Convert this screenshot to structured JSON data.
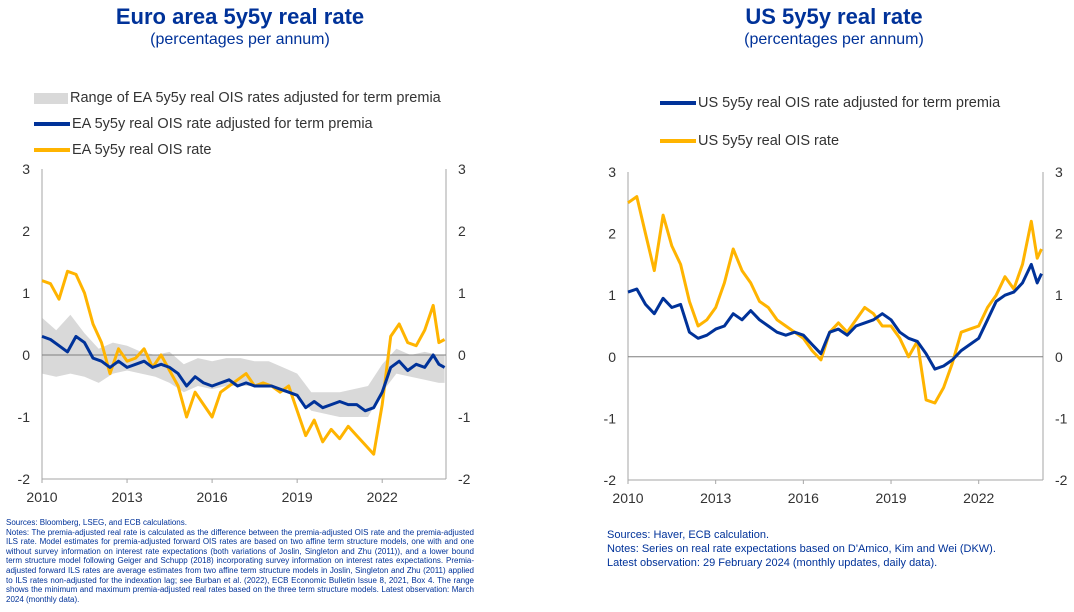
{
  "left": {
    "title": "Euro area 5y5y real rate",
    "subtitle": "(percentages per annum)",
    "legend": [
      {
        "label": "Range of EA 5y5y real OIS rates adjusted for term premia",
        "kind": "band",
        "color": "#d9d9d9"
      },
      {
        "label": "EA 5y5y real OIS rate adjusted for term premia",
        "kind": "line",
        "color": "#003299"
      },
      {
        "label": "EA 5y5y real OIS rate",
        "kind": "line",
        "color": "#ffb400"
      }
    ],
    "sources": "Sources: Bloomberg, LSEG, and ECB calculations.",
    "notes": "Notes: The premia-adjusted real rate is calculated as the difference between the premia-adjusted OIS rate and the premia-adjusted ILS rate. Model estimates for premia-adjusted forward OIS rates are based on two affine term structure models, one with and one without survey information on interest rate expectations (both variations of Joslin, Singleton and Zhu (2011)), and a lower bound term structure model following Geiger and Schupp (2018) incorporating survey information on interest rates expectations. Premia-adjusted forward ILS rates are average estimates from two affine term structure models in Joslin, Singleton and Zhu (2011) applied to ILS rates non-adjusted for the indexation lag; see Burban et al. (2022), ECB Economic Bulletin Issue 8, 2021, Box 4. The range shows the minimum and maximum premia-adjusted real rates based on the three term structure models. Latest observation: March 2024 (monthly data)."
  },
  "right": {
    "title": "US 5y5y real rate",
    "subtitle": "(percentages per annum)",
    "legend": [
      {
        "label": "US 5y5y real OIS rate adjusted for term premia",
        "kind": "line",
        "color": "#003299"
      },
      {
        "label": "US 5y5y real OIS rate",
        "kind": "line",
        "color": "#ffb400"
      }
    ],
    "notes_lines": [
      "Sources: Haver, ECB calculation.",
      "Notes: Series on real rate expectations based on D'Amico, Kim and Wei (DKW).",
      "Latest observation: 29 February 2024 (monthly updates, daily data)."
    ]
  },
  "chart_data": [
    {
      "type": "line",
      "title": "Euro area 5y5y real rate",
      "subtitle": "(percentages per annum)",
      "ylim": [
        -2,
        3
      ],
      "xlim": [
        2010,
        2024.25
      ],
      "yticks": [
        "3",
        "2",
        "1",
        "0",
        "-1",
        "-2"
      ],
      "xticks": [
        "2010",
        "2013",
        "2016",
        "2019",
        "2022"
      ],
      "grid": false,
      "legend_position": "top-left",
      "band": {
        "name": "Range of EA 5y5y real OIS rates adjusted for term premia",
        "color": "#d9d9d9",
        "x": [
          2010,
          2010.5,
          2011,
          2011.5,
          2012,
          2012.5,
          2013,
          2013.5,
          2014,
          2014.5,
          2015,
          2015.5,
          2016,
          2016.5,
          2017,
          2017.5,
          2018,
          2018.5,
          2019,
          2019.5,
          2020,
          2020.5,
          2021,
          2021.5,
          2022,
          2022.5,
          2023,
          2023.5,
          2024,
          2024.2
        ],
        "low": [
          -0.3,
          -0.35,
          -0.3,
          -0.35,
          -0.45,
          -0.3,
          -0.25,
          -0.3,
          -0.35,
          -0.45,
          -0.6,
          -0.5,
          -0.55,
          -0.5,
          -0.5,
          -0.5,
          -0.5,
          -0.6,
          -0.65,
          -0.9,
          -0.95,
          -1.0,
          -1.0,
          -1.0,
          -0.6,
          -0.3,
          -0.35,
          -0.4,
          -0.45,
          -0.45
        ],
        "high": [
          0.6,
          0.4,
          0.65,
          0.35,
          0.1,
          0.2,
          0.15,
          0.05,
          0.0,
          0.05,
          -0.15,
          -0.05,
          -0.1,
          -0.05,
          -0.05,
          -0.1,
          -0.1,
          -0.2,
          -0.3,
          -0.6,
          -0.6,
          -0.6,
          -0.55,
          -0.5,
          -0.15,
          0.1,
          0.0,
          0.05,
          0.0,
          0.0
        ]
      },
      "series": [
        {
          "name": "EA 5y5y real OIS rate adjusted for term premia",
          "color": "#003299",
          "x": [
            2010,
            2010.3,
            2010.6,
            2010.9,
            2011.2,
            2011.5,
            2011.8,
            2012.1,
            2012.4,
            2012.7,
            2013.0,
            2013.3,
            2013.6,
            2013.9,
            2014.2,
            2014.5,
            2014.8,
            2015.1,
            2015.4,
            2015.7,
            2016.0,
            2016.3,
            2016.6,
            2016.9,
            2017.2,
            2017.5,
            2017.8,
            2018.1,
            2018.4,
            2018.7,
            2019.0,
            2019.3,
            2019.6,
            2019.9,
            2020.2,
            2020.5,
            2020.8,
            2021.1,
            2021.4,
            2021.7,
            2022.0,
            2022.3,
            2022.6,
            2022.9,
            2023.2,
            2023.5,
            2023.8,
            2024.0,
            2024.2
          ],
          "y": [
            0.3,
            0.25,
            0.15,
            0.05,
            0.3,
            0.2,
            -0.05,
            -0.1,
            -0.2,
            -0.1,
            -0.2,
            -0.15,
            -0.1,
            -0.2,
            -0.15,
            -0.2,
            -0.3,
            -0.5,
            -0.35,
            -0.45,
            -0.5,
            -0.45,
            -0.4,
            -0.5,
            -0.45,
            -0.5,
            -0.5,
            -0.5,
            -0.55,
            -0.6,
            -0.65,
            -0.85,
            -0.75,
            -0.85,
            -0.8,
            -0.75,
            -0.8,
            -0.8,
            -0.9,
            -0.85,
            -0.6,
            -0.2,
            -0.1,
            -0.25,
            -0.15,
            -0.2,
            0.0,
            -0.15,
            -0.2
          ]
        },
        {
          "name": "EA 5y5y real OIS rate",
          "color": "#ffb400",
          "x": [
            2010,
            2010.3,
            2010.6,
            2010.9,
            2011.2,
            2011.5,
            2011.8,
            2012.1,
            2012.4,
            2012.7,
            2013.0,
            2013.3,
            2013.6,
            2013.9,
            2014.2,
            2014.5,
            2014.8,
            2015.1,
            2015.4,
            2015.7,
            2016.0,
            2016.3,
            2016.6,
            2016.9,
            2017.2,
            2017.5,
            2017.8,
            2018.1,
            2018.4,
            2018.7,
            2019.0,
            2019.3,
            2019.6,
            2019.9,
            2020.2,
            2020.5,
            2020.8,
            2021.1,
            2021.4,
            2021.7,
            2022.0,
            2022.3,
            2022.6,
            2022.9,
            2023.2,
            2023.5,
            2023.8,
            2024.0,
            2024.2
          ],
          "y": [
            1.2,
            1.15,
            0.9,
            1.35,
            1.3,
            1.0,
            0.5,
            0.2,
            -0.3,
            0.1,
            -0.1,
            -0.05,
            0.1,
            -0.2,
            0.0,
            -0.25,
            -0.5,
            -1.0,
            -0.6,
            -0.8,
            -1.0,
            -0.6,
            -0.5,
            -0.4,
            -0.3,
            -0.5,
            -0.45,
            -0.5,
            -0.6,
            -0.5,
            -0.9,
            -1.3,
            -1.05,
            -1.4,
            -1.2,
            -1.35,
            -1.15,
            -1.3,
            -1.45,
            -1.6,
            -0.8,
            0.3,
            0.5,
            0.2,
            0.15,
            0.4,
            0.8,
            0.2,
            0.25
          ]
        }
      ]
    },
    {
      "type": "line",
      "title": "US 5y5y real rate",
      "subtitle": "(percentages per annum)",
      "ylim": [
        -2,
        3
      ],
      "xlim": [
        2010,
        2024.2
      ],
      "yticks": [
        "3",
        "2",
        "1",
        "0",
        "-1",
        "-2"
      ],
      "xticks": [
        "2010",
        "2013",
        "2016",
        "2019",
        "2022"
      ],
      "grid": false,
      "legend_position": "top-left",
      "series": [
        {
          "name": "US 5y5y real OIS rate adjusted for term premia",
          "color": "#003299",
          "x": [
            2010,
            2010.3,
            2010.6,
            2010.9,
            2011.2,
            2011.5,
            2011.8,
            2012.1,
            2012.4,
            2012.7,
            2013.0,
            2013.3,
            2013.6,
            2013.9,
            2014.2,
            2014.5,
            2014.8,
            2015.1,
            2015.4,
            2015.7,
            2016.0,
            2016.3,
            2016.6,
            2016.9,
            2017.2,
            2017.5,
            2017.8,
            2018.1,
            2018.4,
            2018.7,
            2019.0,
            2019.3,
            2019.6,
            2019.9,
            2020.2,
            2020.5,
            2020.8,
            2021.1,
            2021.4,
            2021.7,
            2022.0,
            2022.3,
            2022.6,
            2022.9,
            2023.2,
            2023.5,
            2023.8,
            2024.0,
            2024.15
          ],
          "y": [
            1.05,
            1.1,
            0.85,
            0.7,
            0.95,
            0.8,
            0.85,
            0.4,
            0.3,
            0.35,
            0.45,
            0.5,
            0.7,
            0.6,
            0.75,
            0.6,
            0.5,
            0.4,
            0.35,
            0.4,
            0.35,
            0.2,
            0.05,
            0.4,
            0.45,
            0.35,
            0.5,
            0.55,
            0.6,
            0.7,
            0.6,
            0.4,
            0.3,
            0.25,
            0.05,
            -0.2,
            -0.15,
            -0.05,
            0.1,
            0.2,
            0.3,
            0.6,
            0.9,
            1.0,
            1.05,
            1.2,
            1.5,
            1.2,
            1.35
          ]
        },
        {
          "name": "US 5y5y real OIS rate",
          "color": "#ffb400",
          "x": [
            2010,
            2010.3,
            2010.6,
            2010.9,
            2011.2,
            2011.5,
            2011.8,
            2012.1,
            2012.4,
            2012.7,
            2013.0,
            2013.3,
            2013.6,
            2013.9,
            2014.2,
            2014.5,
            2014.8,
            2015.1,
            2015.4,
            2015.7,
            2016.0,
            2016.3,
            2016.6,
            2016.9,
            2017.2,
            2017.5,
            2017.8,
            2018.1,
            2018.4,
            2018.7,
            2019.0,
            2019.3,
            2019.6,
            2019.9,
            2020.2,
            2020.5,
            2020.8,
            2021.1,
            2021.4,
            2021.7,
            2022.0,
            2022.3,
            2022.6,
            2022.9,
            2023.2,
            2023.5,
            2023.8,
            2024.0,
            2024.15
          ],
          "y": [
            2.5,
            2.6,
            2.0,
            1.4,
            2.3,
            1.8,
            1.5,
            0.9,
            0.5,
            0.6,
            0.8,
            1.2,
            1.75,
            1.4,
            1.2,
            0.9,
            0.8,
            0.6,
            0.5,
            0.4,
            0.3,
            0.1,
            -0.05,
            0.4,
            0.55,
            0.4,
            0.6,
            0.8,
            0.7,
            0.5,
            0.5,
            0.3,
            0.0,
            0.25,
            -0.7,
            -0.75,
            -0.5,
            -0.1,
            0.4,
            0.45,
            0.5,
            0.8,
            1.0,
            1.3,
            1.1,
            1.5,
            2.2,
            1.6,
            1.75
          ]
        }
      ]
    }
  ]
}
